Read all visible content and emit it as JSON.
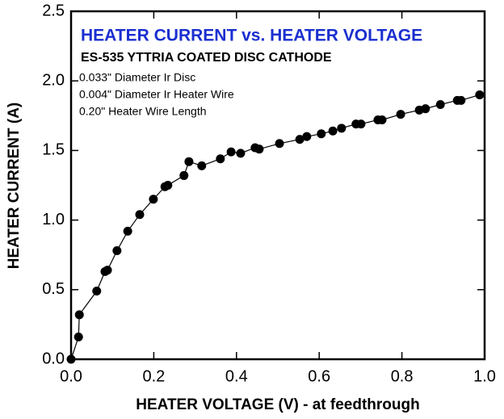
{
  "chart_data": {
    "type": "line",
    "title": "HEATER CURRENT vs. HEATER VOLTAGE",
    "subtitle": "ES-535 YTTRIA COATED DISC CATHODE",
    "annotations": [
      "0.033\" Diameter Ir Disc",
      "0.004\" Diameter Ir Heater Wire",
      "0.20\" Heater Wire Length"
    ],
    "x_label": "HEATER VOLTAGE (V) - at feedthrough",
    "y_label": "HEATER CURRENT (A)",
    "series": [
      {
        "name": "Heater current",
        "color": "#000000",
        "x": [
          0,
          0.018,
          0.02,
          0.062,
          0.082,
          0.088,
          0.111,
          0.137,
          0.166,
          0.199,
          0.227,
          0.234,
          0.273,
          0.285,
          0.316,
          0.361,
          0.387,
          0.41,
          0.445,
          0.455,
          0.504,
          0.553,
          0.57,
          0.605,
          0.633,
          0.654,
          0.689,
          0.701,
          0.742,
          0.752,
          0.797,
          0.842,
          0.857,
          0.893,
          0.934,
          0.943,
          0.988
        ],
        "values": [
          0,
          0.16,
          0.32,
          0.49,
          0.63,
          0.64,
          0.78,
          0.92,
          1.04,
          1.15,
          1.24,
          1.25,
          1.32,
          1.42,
          1.39,
          1.44,
          1.49,
          1.48,
          1.52,
          1.51,
          1.55,
          1.58,
          1.6,
          1.62,
          1.64,
          1.66,
          1.69,
          1.69,
          1.72,
          1.72,
          1.76,
          1.79,
          1.8,
          1.83,
          1.86,
          1.86,
          1.9
        ]
      }
    ],
    "xlim": [
      0,
      1
    ],
    "ylim": [
      0,
      2.5
    ],
    "xticks": [
      {
        "value": 0,
        "label": "0.0"
      },
      0.2,
      0.4,
      0.6,
      0.8,
      {
        "value": 1,
        "label": "1.0"
      }
    ],
    "yticks": [
      {
        "value": 0,
        "label": "0.0"
      },
      0.5,
      {
        "value": 1,
        "label": "1.0"
      },
      1.5,
      {
        "value": 2,
        "label": "2.0"
      },
      2.5
    ],
    "grid": false
  }
}
